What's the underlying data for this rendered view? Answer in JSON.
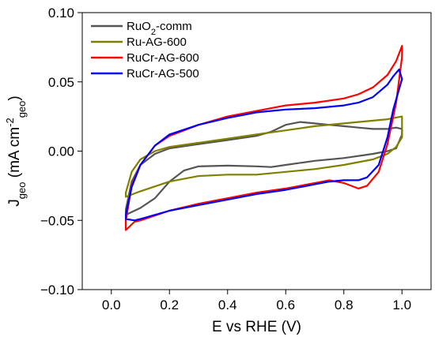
{
  "chart_data": {
    "type": "line",
    "xlabel": "E vs RHE (V)",
    "ylabel": {
      "base": "J",
      "sub": "geo",
      "rest1": " (mA cm",
      "sup": "-2",
      "sub2": "geo",
      "rest2": ")"
    },
    "xlim": [
      -0.1,
      1.1
    ],
    "ylim": [
      -0.1,
      0.1
    ],
    "xticks": [
      0.0,
      0.2,
      0.4,
      0.6,
      0.8,
      1.0
    ],
    "xtick_labels": [
      "0.0",
      "0.2",
      "0.4",
      "0.6",
      "0.8",
      "1.0"
    ],
    "yticks": [
      -0.1,
      -0.05,
      0.0,
      0.05,
      0.1
    ],
    "ytick_labels": [
      "−0.10",
      "−0.05",
      "0.00",
      "0.05",
      "0.10"
    ],
    "legend_position": "top-left",
    "series": [
      {
        "name": "RuO2-comm",
        "name_parts": {
          "pre": "RuO",
          "sub": "2",
          "post": "-comm"
        },
        "color": "#555555",
        "points": [
          [
            0.05,
            -0.046
          ],
          [
            0.1,
            -0.041
          ],
          [
            0.15,
            -0.034
          ],
          [
            0.2,
            -0.022
          ],
          [
            0.25,
            -0.014
          ],
          [
            0.3,
            -0.011
          ],
          [
            0.4,
            -0.0105
          ],
          [
            0.5,
            -0.011
          ],
          [
            0.55,
            -0.0115
          ],
          [
            0.6,
            -0.01
          ],
          [
            0.7,
            -0.007
          ],
          [
            0.8,
            -0.005
          ],
          [
            0.9,
            -0.002
          ],
          [
            0.95,
            0.0
          ],
          [
            0.98,
            0.002
          ],
          [
            1.0,
            0.012
          ],
          [
            1.0,
            0.016
          ],
          [
            0.98,
            0.017
          ],
          [
            0.95,
            0.016
          ],
          [
            0.9,
            0.016
          ],
          [
            0.85,
            0.017
          ],
          [
            0.8,
            0.018
          ],
          [
            0.75,
            0.019
          ],
          [
            0.7,
            0.02
          ],
          [
            0.65,
            0.021
          ],
          [
            0.6,
            0.019
          ],
          [
            0.55,
            0.014
          ],
          [
            0.5,
            0.011
          ],
          [
            0.4,
            0.008
          ],
          [
            0.3,
            0.005
          ],
          [
            0.2,
            0.002
          ],
          [
            0.15,
            -0.002
          ],
          [
            0.1,
            -0.01
          ],
          [
            0.07,
            -0.022
          ],
          [
            0.05,
            -0.042
          ]
        ]
      },
      {
        "name": "Ru-AG-600",
        "color": "#808000",
        "points": [
          [
            0.05,
            -0.033
          ],
          [
            0.1,
            -0.029
          ],
          [
            0.2,
            -0.022
          ],
          [
            0.3,
            -0.018
          ],
          [
            0.4,
            -0.017
          ],
          [
            0.5,
            -0.017
          ],
          [
            0.6,
            -0.015
          ],
          [
            0.7,
            -0.013
          ],
          [
            0.8,
            -0.01
          ],
          [
            0.9,
            -0.006
          ],
          [
            0.95,
            -0.002
          ],
          [
            0.98,
            0.003
          ],
          [
            1.0,
            0.01
          ],
          [
            1.0,
            0.025
          ],
          [
            0.95,
            0.023
          ],
          [
            0.9,
            0.022
          ],
          [
            0.8,
            0.02
          ],
          [
            0.7,
            0.018
          ],
          [
            0.6,
            0.015
          ],
          [
            0.5,
            0.012
          ],
          [
            0.4,
            0.009
          ],
          [
            0.3,
            0.006
          ],
          [
            0.2,
            0.003
          ],
          [
            0.15,
            0.0
          ],
          [
            0.1,
            -0.006
          ],
          [
            0.07,
            -0.015
          ],
          [
            0.05,
            -0.03
          ]
        ]
      },
      {
        "name": "RuCr-AG-600",
        "color": "#ff0000",
        "points": [
          [
            0.05,
            -0.057
          ],
          [
            0.08,
            -0.051
          ],
          [
            0.1,
            -0.05
          ],
          [
            0.2,
            -0.043
          ],
          [
            0.3,
            -0.038
          ],
          [
            0.4,
            -0.034
          ],
          [
            0.5,
            -0.03
          ],
          [
            0.6,
            -0.027
          ],
          [
            0.7,
            -0.023
          ],
          [
            0.75,
            -0.021
          ],
          [
            0.8,
            -0.023
          ],
          [
            0.85,
            -0.027
          ],
          [
            0.88,
            -0.025
          ],
          [
            0.92,
            -0.015
          ],
          [
            0.95,
            0.005
          ],
          [
            0.98,
            0.035
          ],
          [
            1.0,
            0.068
          ],
          [
            1.0,
            0.076
          ],
          [
            0.98,
            0.065
          ],
          [
            0.95,
            0.055
          ],
          [
            0.9,
            0.046
          ],
          [
            0.85,
            0.041
          ],
          [
            0.8,
            0.038
          ],
          [
            0.7,
            0.035
          ],
          [
            0.6,
            0.033
          ],
          [
            0.5,
            0.029
          ],
          [
            0.4,
            0.025
          ],
          [
            0.3,
            0.019
          ],
          [
            0.2,
            0.011
          ],
          [
            0.15,
            0.004
          ],
          [
            0.1,
            -0.01
          ],
          [
            0.07,
            -0.025
          ],
          [
            0.05,
            -0.05
          ]
        ]
      },
      {
        "name": "RuCr-AG-500",
        "color": "#0000ff",
        "points": [
          [
            0.05,
            -0.049
          ],
          [
            0.08,
            -0.05
          ],
          [
            0.1,
            -0.049
          ],
          [
            0.2,
            -0.043
          ],
          [
            0.3,
            -0.039
          ],
          [
            0.4,
            -0.035
          ],
          [
            0.5,
            -0.031
          ],
          [
            0.6,
            -0.028
          ],
          [
            0.7,
            -0.024
          ],
          [
            0.75,
            -0.022
          ],
          [
            0.8,
            -0.021
          ],
          [
            0.85,
            -0.021
          ],
          [
            0.88,
            -0.019
          ],
          [
            0.92,
            -0.01
          ],
          [
            0.95,
            0.01
          ],
          [
            0.97,
            0.03
          ],
          [
            1.0,
            0.052
          ],
          [
            0.99,
            0.059
          ],
          [
            0.97,
            0.054
          ],
          [
            0.95,
            0.048
          ],
          [
            0.9,
            0.039
          ],
          [
            0.85,
            0.035
          ],
          [
            0.8,
            0.033
          ],
          [
            0.7,
            0.031
          ],
          [
            0.6,
            0.03
          ],
          [
            0.5,
            0.028
          ],
          [
            0.4,
            0.024
          ],
          [
            0.3,
            0.019
          ],
          [
            0.2,
            0.012
          ],
          [
            0.15,
            0.004
          ],
          [
            0.1,
            -0.01
          ],
          [
            0.07,
            -0.026
          ],
          [
            0.05,
            -0.046
          ]
        ]
      }
    ]
  }
}
